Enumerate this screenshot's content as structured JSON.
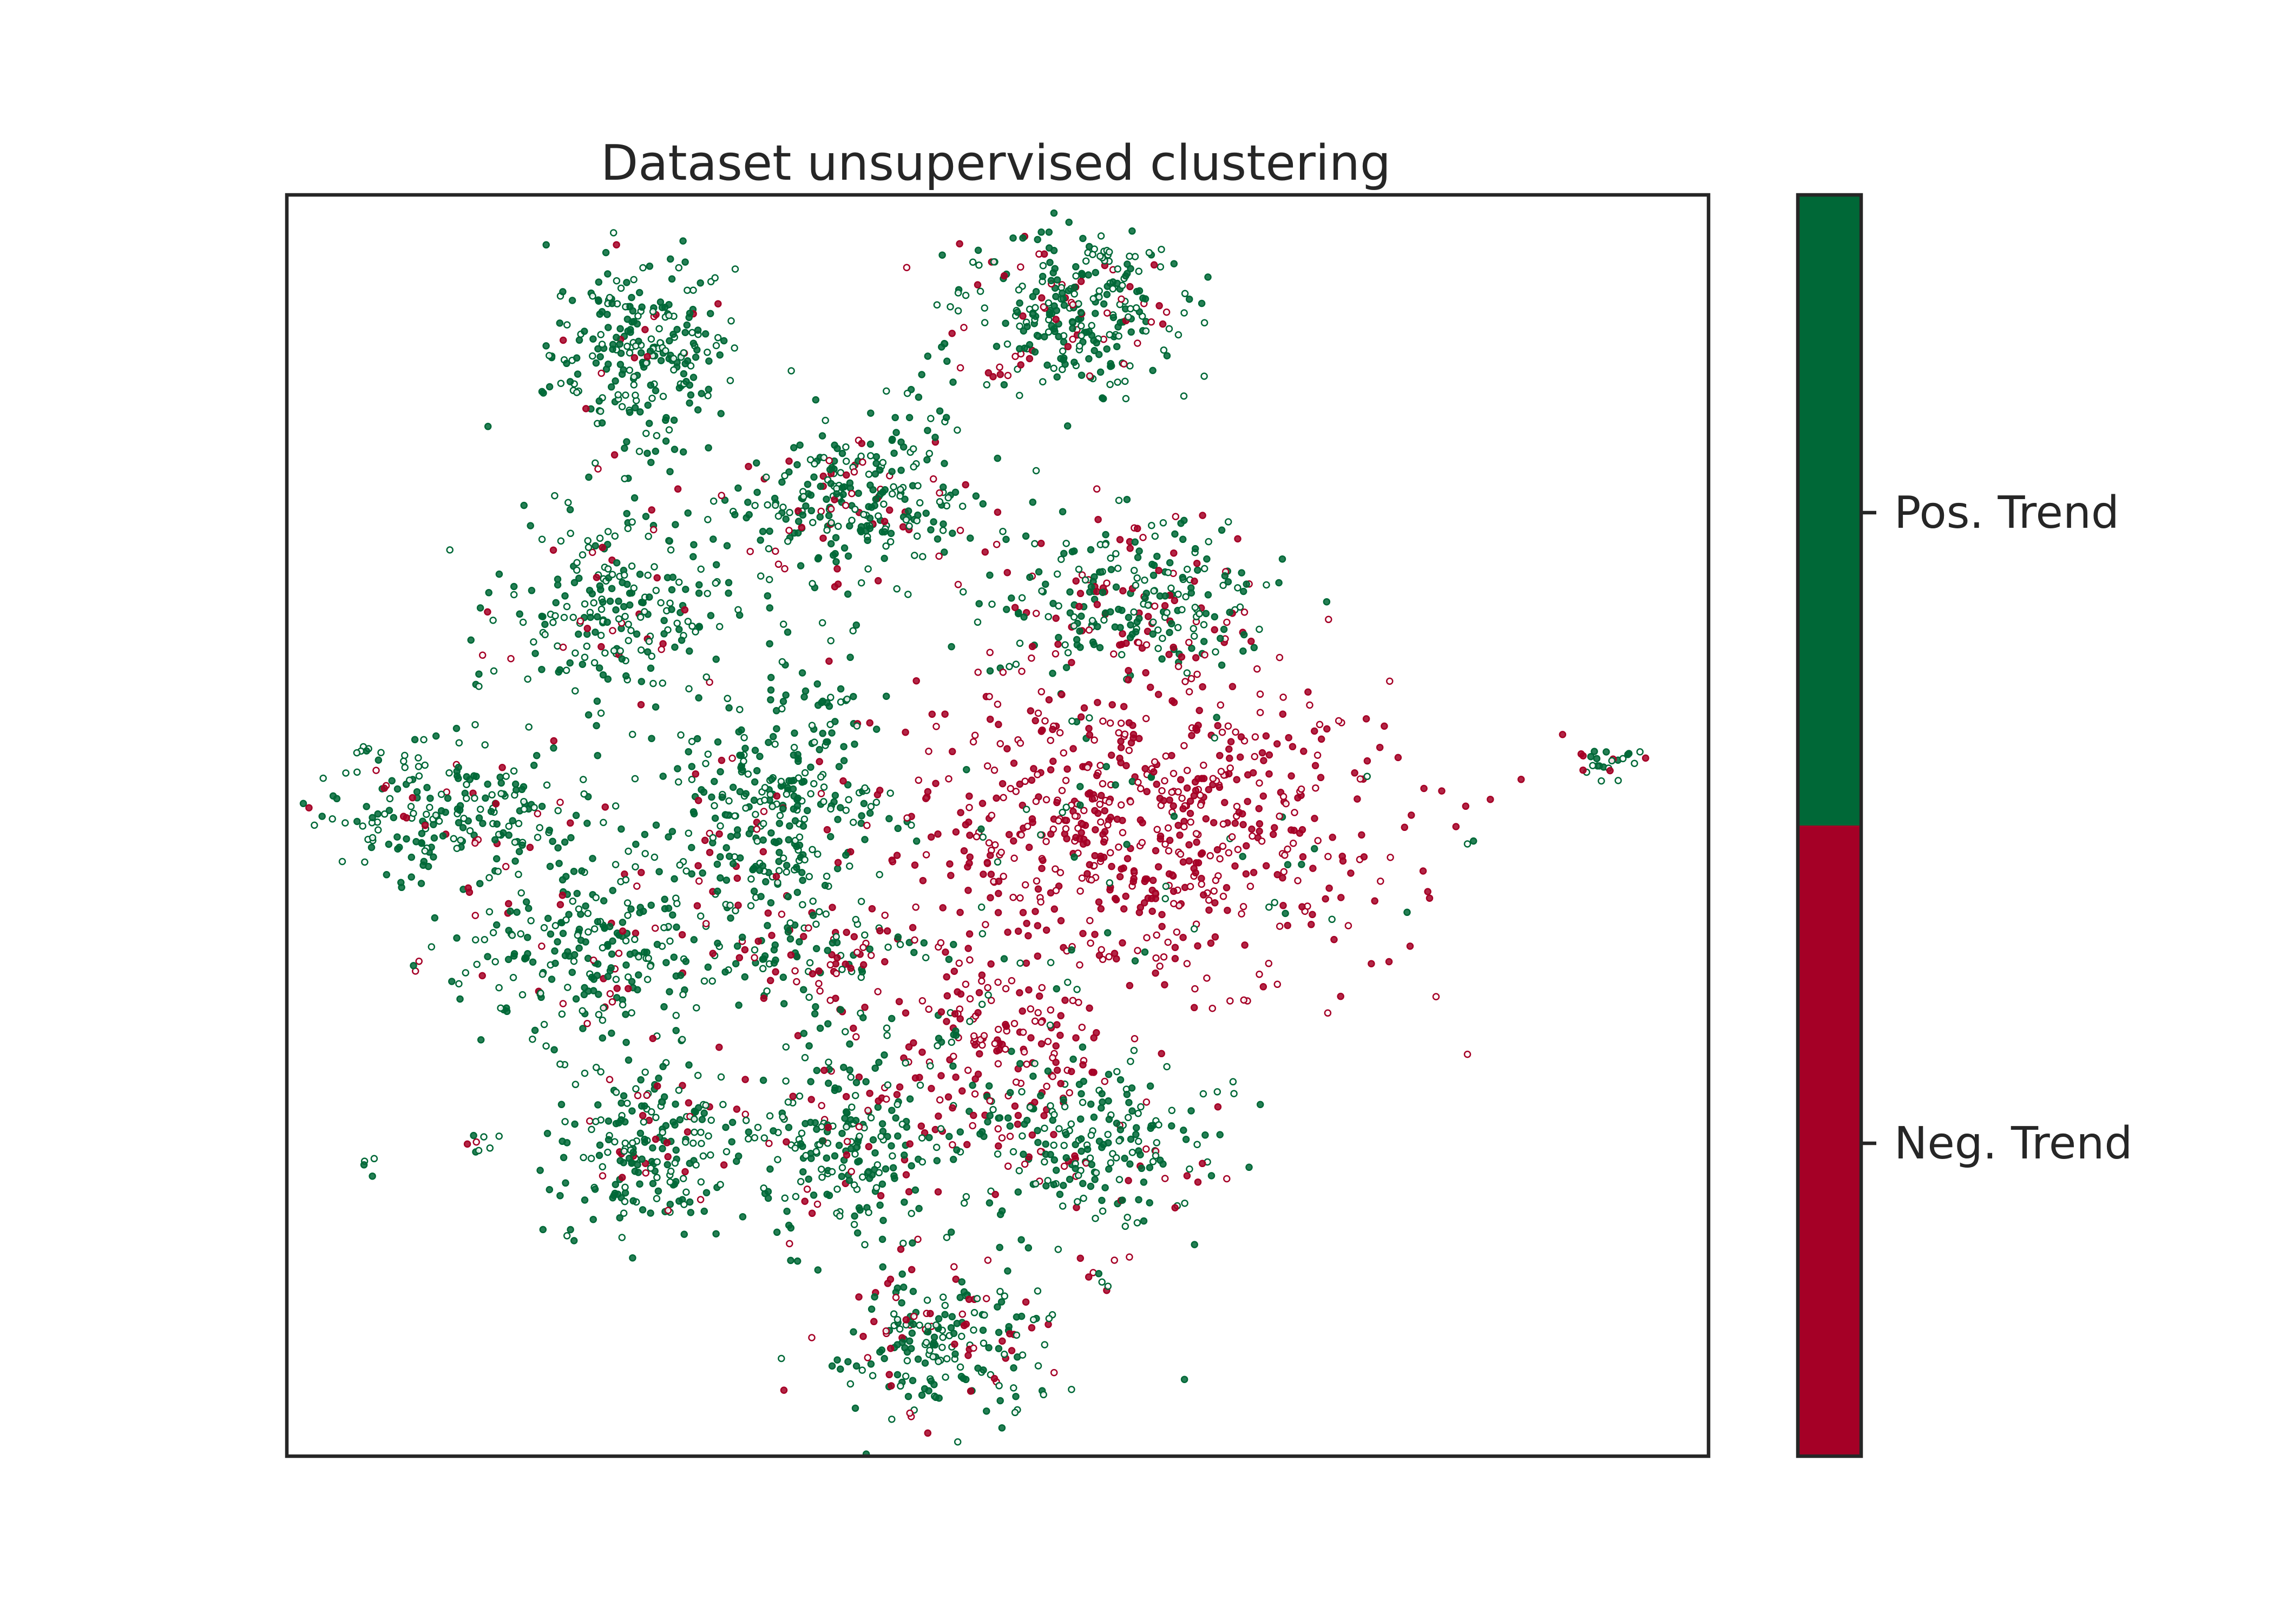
{
  "chart_data": {
    "type": "scatter",
    "title": "Dataset unsupervised clustering",
    "xlabel": "",
    "ylabel": "",
    "axis_ticks_visible": false,
    "grid": false,
    "xlim": [
      0,
      100
    ],
    "ylim": [
      0,
      100
    ],
    "colors": {
      "positive": "#006837",
      "negative": "#a50026",
      "frame": "#262626"
    },
    "colorbar": {
      "position": "right",
      "ticks": [
        {
          "label": "Pos. Trend",
          "class": "positive"
        },
        {
          "label": "Neg. Trend",
          "class": "negative"
        }
      ]
    },
    "clusters": [
      {
        "cx": 25.0,
        "cy": 87.5,
        "sx": 3.2,
        "sy": 3.8,
        "n": 260,
        "neg": 0.05
      },
      {
        "cx": 55.0,
        "cy": 91.0,
        "sx": 4.0,
        "sy": 3.2,
        "n": 300,
        "neg": 0.2
      },
      {
        "cx": 39.5,
        "cy": 75.5,
        "sx": 4.0,
        "sy": 3.0,
        "n": 270,
        "neg": 0.15
      },
      {
        "cx": 23.5,
        "cy": 67.0,
        "sx": 4.0,
        "sy": 3.8,
        "n": 250,
        "neg": 0.12
      },
      {
        "cx": 59.5,
        "cy": 68.0,
        "sx": 5.0,
        "sy": 3.5,
        "n": 290,
        "neg": 0.25
      },
      {
        "cx": 11.5,
        "cy": 51.0,
        "sx": 5.5,
        "sy": 2.8,
        "n": 240,
        "neg": 0.1
      },
      {
        "cx": 34.0,
        "cy": 51.0,
        "sx": 4.0,
        "sy": 3.8,
        "n": 280,
        "neg": 0.08
      },
      {
        "cx": 60.0,
        "cy": 50.0,
        "sx": 9.0,
        "sy": 6.0,
        "n": 720,
        "neg": 0.94
      },
      {
        "cx": 21.0,
        "cy": 39.5,
        "sx": 5.0,
        "sy": 3.5,
        "n": 260,
        "neg": 0.12
      },
      {
        "cx": 38.0,
        "cy": 40.0,
        "sx": 4.0,
        "sy": 2.8,
        "n": 130,
        "neg": 0.4
      },
      {
        "cx": 49.5,
        "cy": 33.0,
        "sx": 3.5,
        "sy": 4.0,
        "n": 180,
        "neg": 0.85
      },
      {
        "cx": 25.5,
        "cy": 24.5,
        "sx": 3.5,
        "sy": 3.8,
        "n": 230,
        "neg": 0.1
      },
      {
        "cx": 39.5,
        "cy": 24.5,
        "sx": 3.0,
        "sy": 3.8,
        "n": 230,
        "neg": 0.2
      },
      {
        "cx": 56.0,
        "cy": 24.5,
        "sx": 4.5,
        "sy": 3.8,
        "n": 250,
        "neg": 0.2
      },
      {
        "cx": 46.0,
        "cy": 9.0,
        "sx": 4.0,
        "sy": 3.2,
        "n": 220,
        "neg": 0.2
      },
      {
        "cx": 93.0,
        "cy": 55.0,
        "sx": 1.0,
        "sy": 0.7,
        "n": 25,
        "neg": 0.2
      },
      {
        "cx": 45.0,
        "cy": 82.0,
        "sx": 1.8,
        "sy": 2.8,
        "n": 25,
        "neg": 0.05
      },
      {
        "cx": 37.5,
        "cy": 61.0,
        "sx": 2.5,
        "sy": 2.5,
        "n": 40,
        "neg": 0.1
      },
      {
        "cx": 6.0,
        "cy": 23.0,
        "sx": 0.5,
        "sy": 0.5,
        "n": 4,
        "neg": 0.0
      },
      {
        "cx": 13.5,
        "cy": 25.0,
        "sx": 0.6,
        "sy": 1.0,
        "n": 8,
        "neg": 0.2
      },
      {
        "cx": 57.5,
        "cy": 13.0,
        "sx": 0.5,
        "sy": 1.0,
        "n": 6,
        "neg": 0.3
      }
    ]
  }
}
